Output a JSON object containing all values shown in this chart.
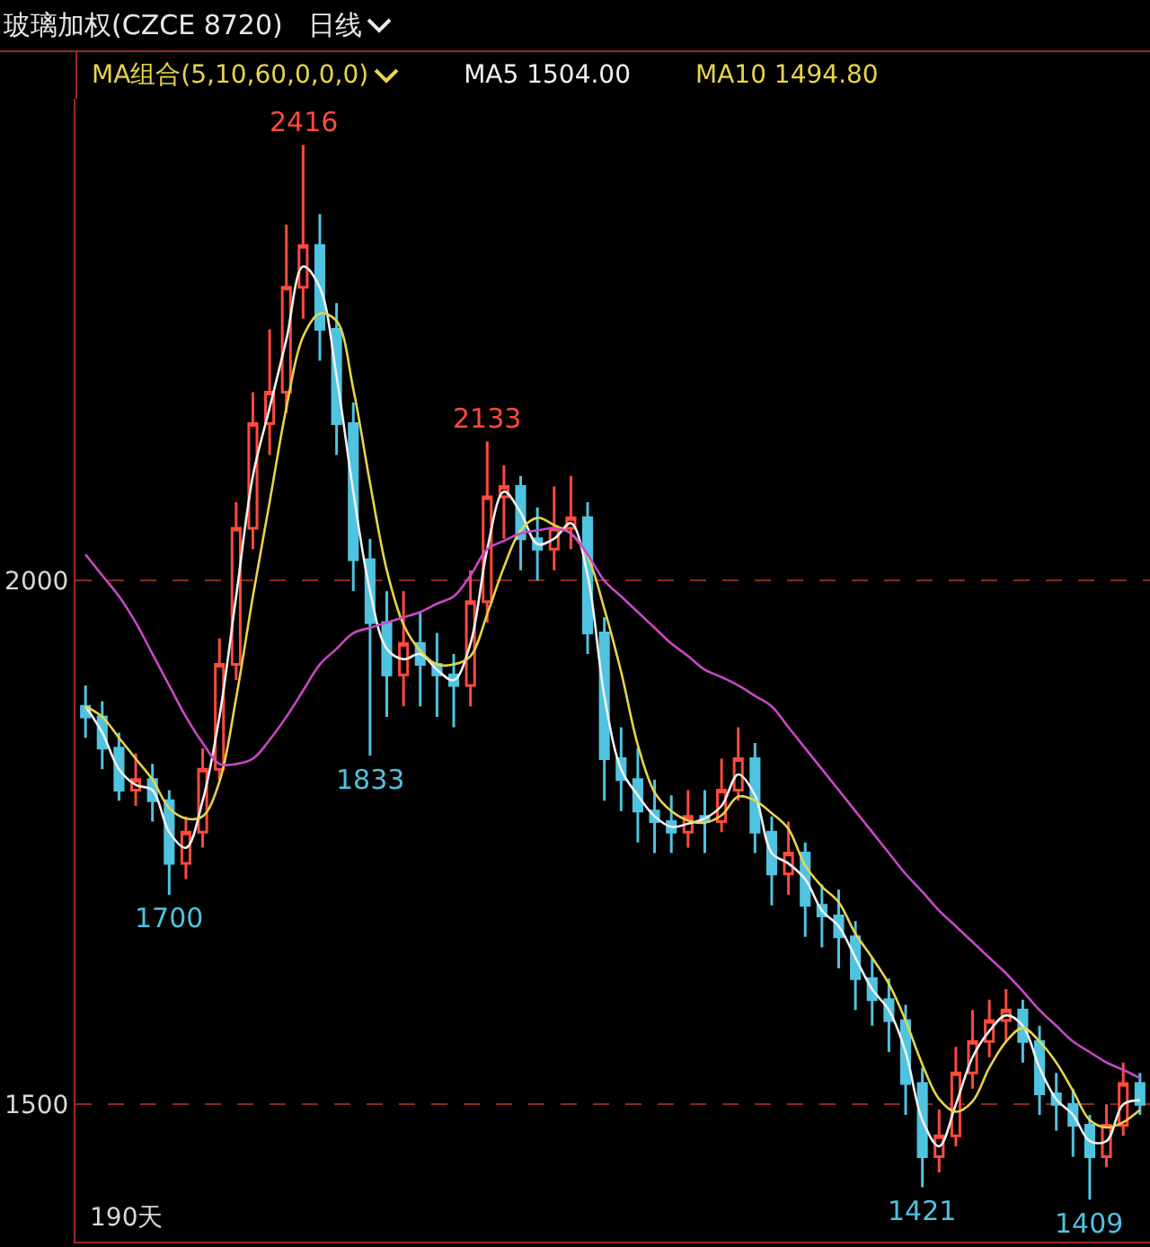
{
  "chart_data": {
    "type": "candlestick",
    "title": "玻璃加权(CZCE 8720)",
    "subtitle": "日线",
    "annotations": [
      "MA组合(5,10,60,0,0,0)",
      {
        "text": "2416",
        "y": 2416
      },
      {
        "text": "2133",
        "y": 2133
      },
      {
        "text": "1833",
        "y": 1833
      },
      {
        "text": "1700",
        "y": 1700
      },
      {
        "text": "1421",
        "y": 1421
      },
      {
        "text": "1409",
        "y": 1409
      },
      "190天"
    ],
    "categories": [
      null,
      null,
      null,
      null,
      null,
      null,
      null,
      null,
      null,
      null,
      null,
      null,
      null,
      null,
      null,
      null,
      null,
      null,
      null,
      null,
      null,
      null,
      null,
      null,
      null,
      null,
      null,
      null,
      null,
      null,
      null,
      null,
      null,
      null,
      null,
      null,
      null,
      null,
      null,
      null,
      null,
      null,
      null,
      null,
      null,
      null,
      null,
      null,
      null,
      null,
      null,
      null,
      null,
      null,
      null,
      null,
      null,
      null,
      null,
      null,
      null,
      null,
      null,
      null
    ],
    "ohlc": [
      [
        1880,
        1900,
        1850,
        1870
      ],
      [
        1870,
        1885,
        1820,
        1840
      ],
      [
        1840,
        1855,
        1790,
        1800
      ],
      [
        1800,
        1835,
        1785,
        1810
      ],
      [
        1810,
        1825,
        1770,
        1790
      ],
      [
        1790,
        1800,
        1700,
        1730
      ],
      [
        1730,
        1775,
        1715,
        1760
      ],
      [
        1760,
        1840,
        1745,
        1820
      ],
      [
        1820,
        1945,
        1810,
        1920
      ],
      [
        1920,
        2075,
        1905,
        2050
      ],
      [
        2050,
        2180,
        2030,
        2150
      ],
      [
        2150,
        2240,
        2120,
        2180
      ],
      [
        2180,
        2340,
        2160,
        2280
      ],
      [
        2280,
        2416,
        2250,
        2320
      ],
      [
        2320,
        2350,
        2210,
        2240
      ],
      [
        2240,
        2265,
        2120,
        2150
      ],
      [
        2150,
        2170,
        1990,
        2020
      ],
      [
        2020,
        2040,
        1833,
        1960
      ],
      [
        1960,
        1990,
        1870,
        1910
      ],
      [
        1910,
        1990,
        1880,
        1940
      ],
      [
        1940,
        1970,
        1880,
        1920
      ],
      [
        1920,
        1950,
        1870,
        1910
      ],
      [
        1910,
        1930,
        1860,
        1900
      ],
      [
        1900,
        2010,
        1880,
        1980
      ],
      [
        1980,
        2133,
        1960,
        2080
      ],
      [
        2080,
        2110,
        2040,
        2090
      ],
      [
        2090,
        2100,
        2010,
        2040
      ],
      [
        2040,
        2070,
        2000,
        2030
      ],
      [
        2030,
        2090,
        2010,
        2050
      ],
      [
        2050,
        2100,
        2030,
        2060
      ],
      [
        2060,
        2075,
        1930,
        1950
      ],
      [
        1950,
        1965,
        1790,
        1830
      ],
      [
        1830,
        1860,
        1780,
        1810
      ],
      [
        1810,
        1840,
        1750,
        1780
      ],
      [
        1780,
        1810,
        1740,
        1770
      ],
      [
        1770,
        1795,
        1740,
        1760
      ],
      [
        1760,
        1800,
        1745,
        1775
      ],
      [
        1775,
        1800,
        1740,
        1770
      ],
      [
        1770,
        1830,
        1760,
        1800
      ],
      [
        1800,
        1860,
        1790,
        1830
      ],
      [
        1830,
        1845,
        1740,
        1760
      ],
      [
        1760,
        1775,
        1690,
        1720
      ],
      [
        1720,
        1770,
        1700,
        1740
      ],
      [
        1740,
        1750,
        1660,
        1690
      ],
      [
        1690,
        1710,
        1650,
        1680
      ],
      [
        1680,
        1705,
        1630,
        1660
      ],
      [
        1660,
        1675,
        1590,
        1620
      ],
      [
        1620,
        1640,
        1575,
        1600
      ],
      [
        1600,
        1620,
        1550,
        1580
      ],
      [
        1580,
        1595,
        1490,
        1520
      ],
      [
        1520,
        1535,
        1421,
        1450
      ],
      [
        1450,
        1495,
        1435,
        1470
      ],
      [
        1470,
        1555,
        1460,
        1530
      ],
      [
        1530,
        1590,
        1515,
        1560
      ],
      [
        1560,
        1600,
        1545,
        1580
      ],
      [
        1580,
        1610,
        1560,
        1590
      ],
      [
        1590,
        1600,
        1540,
        1560
      ],
      [
        1560,
        1575,
        1490,
        1510
      ],
      [
        1510,
        1530,
        1475,
        1500
      ],
      [
        1500,
        1515,
        1450,
        1480
      ],
      [
        1480,
        1490,
        1409,
        1450
      ],
      [
        1450,
        1500,
        1440,
        1480
      ],
      [
        1480,
        1540,
        1470,
        1520
      ],
      [
        1520,
        1530,
        1490,
        1500
      ]
    ],
    "colors": [
      "#4fc3e0",
      "#4fc3e0",
      "#4fc3e0",
      "#ff4a3d",
      "#4fc3e0",
      "#4fc3e0",
      "#ff4a3d",
      "#ff4a3d",
      "#ff4a3d",
      "#ff4a3d",
      "#ff4a3d",
      "#ff4a3d",
      "#ff4a3d",
      "#ff4a3d",
      "#4fc3e0",
      "#4fc3e0",
      "#4fc3e0",
      "#4fc3e0",
      "#4fc3e0",
      "#ff4a3d",
      "#4fc3e0",
      "#4fc3e0",
      "#4fc3e0",
      "#ff4a3d",
      "#ff4a3d",
      "#ff4a3d",
      "#4fc3e0",
      "#4fc3e0",
      "#ff4a3d",
      "#ff4a3d",
      "#4fc3e0",
      "#4fc3e0",
      "#4fc3e0",
      "#4fc3e0",
      "#4fc3e0",
      "#4fc3e0",
      "#ff4a3d",
      "#4fc3e0",
      "#ff4a3d",
      "#ff4a3d",
      "#4fc3e0",
      "#4fc3e0",
      "#ff4a3d",
      "#4fc3e0",
      "#4fc3e0",
      "#4fc3e0",
      "#4fc3e0",
      "#4fc3e0",
      "#4fc3e0",
      "#4fc3e0",
      "#4fc3e0",
      "#ff4a3d",
      "#ff4a3d",
      "#ff4a3d",
      "#ff4a3d",
      "#ff4a3d",
      "#4fc3e0",
      "#4fc3e0",
      "#4fc3e0",
      "#4fc3e0",
      "#4fc3e0",
      "#ff4a3d",
      "#ff4a3d",
      "#4fc3e0"
    ],
    "series": [
      {
        "type": "line",
        "name": "MA5 1504.00",
        "color": "#f0f0f0",
        "values": [
          1880,
          1855,
          1820,
          1805,
          1800,
          1760,
          1745,
          1790,
          1870,
          1985,
          2100,
          2165,
          2230,
          2300,
          2280,
          2195,
          2085,
          1990,
          1935,
          1925,
          1930,
          1915,
          1905,
          1940,
          2030,
          2085,
          2065,
          2035,
          2040,
          2055,
          2005,
          1890,
          1820,
          1795,
          1775,
          1765,
          1768,
          1773,
          1785,
          1815,
          1795,
          1740,
          1730,
          1715,
          1685,
          1670,
          1640,
          1610,
          1590,
          1550,
          1485,
          1460,
          1500,
          1545,
          1570,
          1585,
          1575,
          1535,
          1505,
          1490,
          1465,
          1465,
          1500,
          1504
        ]
      },
      {
        "type": "line",
        "name": "MA10 1494.80",
        "color": "#e8d44a",
        "values": [
          1880,
          1870,
          1850,
          1830,
          1810,
          1783,
          1773,
          1775,
          1808,
          1888,
          1985,
          2075,
          2165,
          2233,
          2255,
          2248,
          2183,
          2093,
          2010,
          1958,
          1933,
          1920,
          1920,
          1928,
          1968,
          2013,
          2048,
          2060,
          2053,
          2045,
          2023,
          1973,
          1913,
          1843,
          1798,
          1780,
          1771,
          1769,
          1776,
          1794,
          1790,
          1778,
          1763,
          1728,
          1708,
          1693,
          1663,
          1640,
          1615,
          1580,
          1538,
          1505,
          1493,
          1503,
          1535,
          1560,
          1573,
          1560,
          1540,
          1513,
          1485,
          1478,
          1483,
          1494.8
        ]
      },
      {
        "type": "line",
        "color": "#c848c8",
        "values": [
          2025,
          2005,
          1985,
          1960,
          1930,
          1900,
          1870,
          1845,
          1825,
          1825,
          1830,
          1848,
          1870,
          1895,
          1920,
          1935,
          1950,
          1955,
          1960,
          1965,
          1970,
          1978,
          1985,
          2005,
          2030,
          2038,
          2045,
          2048,
          2050,
          2045,
          2025,
          2000,
          1985,
          1970,
          1955,
          1940,
          1928,
          1915,
          1908,
          1900,
          1890,
          1880,
          1860,
          1840,
          1820,
          1800,
          1780,
          1760,
          1740,
          1720,
          1703,
          1685,
          1670,
          1655,
          1640,
          1625,
          1608,
          1590,
          1575,
          1560,
          1550,
          1540,
          1533,
          1525
        ]
      }
    ],
    "ylim": [
      1369,
      2460
    ],
    "yticks": [
      1500,
      2000
    ],
    "grid": "y",
    "legend": "top",
    "tick_labels": "y"
  }
}
